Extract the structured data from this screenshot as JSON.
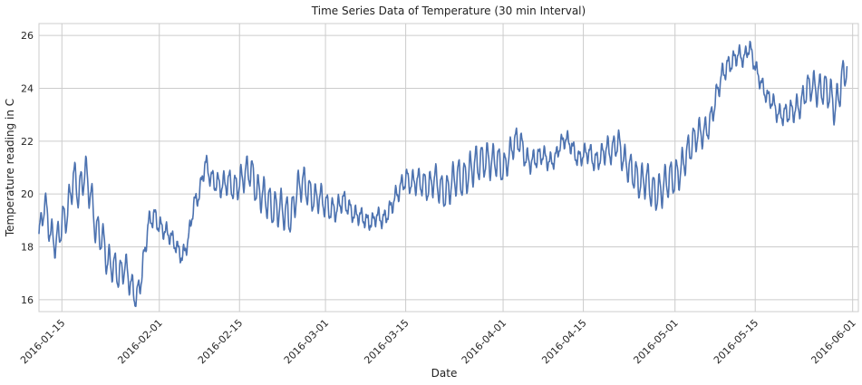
{
  "chart_data": {
    "type": "line",
    "title": "Time Series Data of Temperature (30 min Interval)",
    "xlabel": "Date",
    "ylabel": "Temperature reading in C",
    "x_axis": "date",
    "xlim": [
      "2016-01-11",
      "2016-06-02"
    ],
    "ylim": [
      15.55,
      26.45
    ],
    "x_ticks": [
      "2016-01-15",
      "2016-02-01",
      "2016-02-15",
      "2016-03-01",
      "2016-03-15",
      "2016-04-01",
      "2016-04-15",
      "2016-05-01",
      "2016-05-15",
      "2016-06-01"
    ],
    "y_ticks": [
      16,
      18,
      20,
      22,
      24,
      26
    ],
    "grid": true,
    "legend": "none",
    "colors": {
      "line": "#4c72b0",
      "grid": "#cccccc",
      "background": "#ffffff"
    },
    "series": [
      {
        "points": [
          [
            "2016-01-11",
            18.4
          ],
          [
            "2016-01-12",
            19.7
          ],
          [
            "2016-01-13",
            18.5
          ],
          [
            "2016-01-14",
            18.1
          ],
          [
            "2016-01-15",
            18.9
          ],
          [
            "2016-01-16",
            19.3
          ],
          [
            "2016-01-17",
            20.7
          ],
          [
            "2016-01-18",
            20.0
          ],
          [
            "2016-01-19",
            20.9
          ],
          [
            "2016-01-20",
            20.0
          ],
          [
            "2016-01-21",
            18.6
          ],
          [
            "2016-01-22",
            18.4
          ],
          [
            "2016-01-23",
            17.4
          ],
          [
            "2016-01-24",
            17.3
          ],
          [
            "2016-01-25",
            16.9
          ],
          [
            "2016-01-26",
            17.3
          ],
          [
            "2016-01-27",
            16.6
          ],
          [
            "2016-01-28",
            16.0
          ],
          [
            "2016-01-29",
            17.0
          ],
          [
            "2016-01-30",
            18.8
          ],
          [
            "2016-01-31",
            19.2
          ],
          [
            "2016-02-01",
            18.8
          ],
          [
            "2016-02-02",
            18.6
          ],
          [
            "2016-02-03",
            18.4
          ],
          [
            "2016-02-04",
            18.0
          ],
          [
            "2016-02-05",
            17.6
          ],
          [
            "2016-02-06",
            18.2
          ],
          [
            "2016-02-07",
            19.6
          ],
          [
            "2016-02-08",
            20.0
          ],
          [
            "2016-02-09",
            21.2
          ],
          [
            "2016-02-10",
            20.6
          ],
          [
            "2016-02-11",
            20.4
          ],
          [
            "2016-02-12",
            20.3
          ],
          [
            "2016-02-13",
            20.5
          ],
          [
            "2016-02-14",
            20.2
          ],
          [
            "2016-02-15",
            20.4
          ],
          [
            "2016-02-16",
            20.8
          ],
          [
            "2016-02-17",
            20.9
          ],
          [
            "2016-02-18",
            20.1
          ],
          [
            "2016-02-19",
            20.0
          ],
          [
            "2016-02-20",
            19.7
          ],
          [
            "2016-02-21",
            19.4
          ],
          [
            "2016-02-22",
            19.5
          ],
          [
            "2016-02-23",
            19.3
          ],
          [
            "2016-02-24",
            19.1
          ],
          [
            "2016-02-25",
            20.1
          ],
          [
            "2016-02-26",
            20.5
          ],
          [
            "2016-02-27",
            20.1
          ],
          [
            "2016-02-28",
            19.8
          ],
          [
            "2016-02-29",
            19.9
          ],
          [
            "2016-03-01",
            19.6
          ],
          [
            "2016-03-02",
            19.4
          ],
          [
            "2016-03-03",
            19.4
          ],
          [
            "2016-03-04",
            19.8
          ],
          [
            "2016-03-05",
            19.5
          ],
          [
            "2016-03-06",
            19.2
          ],
          [
            "2016-03-07",
            19.2
          ],
          [
            "2016-03-08",
            19.0
          ],
          [
            "2016-03-09",
            18.9
          ],
          [
            "2016-03-10",
            19.2
          ],
          [
            "2016-03-11",
            19.0
          ],
          [
            "2016-03-12",
            19.3
          ],
          [
            "2016-03-13",
            19.8
          ],
          [
            "2016-03-14",
            20.2
          ],
          [
            "2016-03-15",
            20.6
          ],
          [
            "2016-03-16",
            20.4
          ],
          [
            "2016-03-17",
            20.5
          ],
          [
            "2016-03-18",
            20.4
          ],
          [
            "2016-03-19",
            20.2
          ],
          [
            "2016-03-20",
            20.6
          ],
          [
            "2016-03-21",
            20.2
          ],
          [
            "2016-03-22",
            20.0
          ],
          [
            "2016-03-23",
            20.4
          ],
          [
            "2016-03-24",
            20.7
          ],
          [
            "2016-03-25",
            20.5
          ],
          [
            "2016-03-26",
            20.8
          ],
          [
            "2016-03-27",
            21.1
          ],
          [
            "2016-03-28",
            21.2
          ],
          [
            "2016-03-29",
            21.3
          ],
          [
            "2016-03-30",
            21.2
          ],
          [
            "2016-03-31",
            21.3
          ],
          [
            "2016-04-01",
            20.9
          ],
          [
            "2016-04-02",
            21.4
          ],
          [
            "2016-04-03",
            22.0
          ],
          [
            "2016-04-04",
            22.0
          ],
          [
            "2016-04-05",
            21.3
          ],
          [
            "2016-04-06",
            21.2
          ],
          [
            "2016-04-07",
            21.4
          ],
          [
            "2016-04-08",
            21.5
          ],
          [
            "2016-04-09",
            21.2
          ],
          [
            "2016-04-10",
            21.3
          ],
          [
            "2016-04-11",
            21.9
          ],
          [
            "2016-04-12",
            22.1
          ],
          [
            "2016-04-13",
            21.8
          ],
          [
            "2016-04-14",
            21.3
          ],
          [
            "2016-04-15",
            21.5
          ],
          [
            "2016-04-16",
            21.6
          ],
          [
            "2016-04-17",
            21.2
          ],
          [
            "2016-04-18",
            21.4
          ],
          [
            "2016-04-19",
            21.7
          ],
          [
            "2016-04-20",
            21.6
          ],
          [
            "2016-04-21",
            22.0
          ],
          [
            "2016-04-22",
            21.3
          ],
          [
            "2016-04-23",
            21.0
          ],
          [
            "2016-04-24",
            20.7
          ],
          [
            "2016-04-25",
            20.4
          ],
          [
            "2016-04-26",
            20.6
          ],
          [
            "2016-04-27",
            20.1
          ],
          [
            "2016-04-28",
            20.0
          ],
          [
            "2016-04-29",
            20.3
          ],
          [
            "2016-04-30",
            20.6
          ],
          [
            "2016-05-01",
            20.6
          ],
          [
            "2016-05-02",
            20.9
          ],
          [
            "2016-05-03",
            21.5
          ],
          [
            "2016-05-04",
            21.9
          ],
          [
            "2016-05-05",
            22.3
          ],
          [
            "2016-05-06",
            22.3
          ],
          [
            "2016-05-07",
            22.6
          ],
          [
            "2016-05-08",
            23.5
          ],
          [
            "2016-05-09",
            24.4
          ],
          [
            "2016-05-10",
            24.8
          ],
          [
            "2016-05-11",
            25.0
          ],
          [
            "2016-05-12",
            25.3
          ],
          [
            "2016-05-13",
            25.1
          ],
          [
            "2016-05-14",
            25.6
          ],
          [
            "2016-05-15",
            24.8
          ],
          [
            "2016-05-16",
            24.2
          ],
          [
            "2016-05-17",
            23.7
          ],
          [
            "2016-05-18",
            23.5
          ],
          [
            "2016-05-19",
            23.0
          ],
          [
            "2016-05-20",
            23.0
          ],
          [
            "2016-05-21",
            23.1
          ],
          [
            "2016-05-22",
            23.2
          ],
          [
            "2016-05-23",
            23.4
          ],
          [
            "2016-05-24",
            24.0
          ],
          [
            "2016-05-25",
            24.1
          ],
          [
            "2016-05-26",
            23.9
          ],
          [
            "2016-05-27",
            24.0
          ],
          [
            "2016-05-28",
            23.8
          ],
          [
            "2016-05-29",
            23.2
          ],
          [
            "2016-05-30",
            24.2
          ],
          [
            "2016-05-31",
            24.9
          ]
        ]
      }
    ]
  }
}
